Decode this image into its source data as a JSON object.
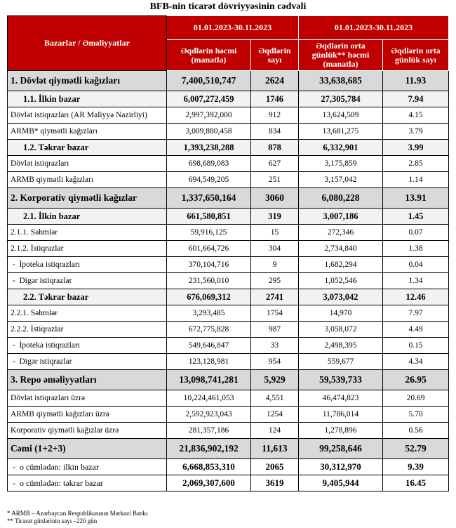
{
  "title": "BFB-nin ticarət dövriyyəsinin cədvəli",
  "header": {
    "col0": "Bazarlar / Əməliyyatlar",
    "period1": "01.01.2023-30.11.2023",
    "period2": "01.01.2023-30.11.2023",
    "h1": "Əqdlərin həcmi (manatla)",
    "h2": "Əqdlərin sayı",
    "h3": "Əqdlərin orta günlük** həcmi (manatla)",
    "h4": "Əqdlərin orta günlük sayı"
  },
  "rows": [
    {
      "type": "main",
      "label": "1. Dövlət qiymətli kağızları",
      "v": [
        "7,400,510,747",
        "2624",
        "33,638,685",
        "11.93"
      ]
    },
    {
      "type": "sub",
      "label": "1.1. İlkin bazar",
      "v": [
        "6,007,272,459",
        "1746",
        "27,305,784",
        "7.94"
      ]
    },
    {
      "type": "norm",
      "label": "Dövlət istiqrazları (AR Maliyyə Nazirliyi)",
      "v": [
        "2,997,392,000",
        "912",
        "13,624,509",
        "4.15"
      ]
    },
    {
      "type": "norm",
      "label": "ARMB* qiymətli kağızları",
      "v": [
        "3,009,880,458",
        "834",
        "13,681,275",
        "3.79"
      ]
    },
    {
      "type": "sub",
      "label": "1.2. Təkrar bazar",
      "v": [
        "1,393,238,288",
        "878",
        "6,332,901",
        "3.99"
      ]
    },
    {
      "type": "norm",
      "label": "Dövlət istiqrazları",
      "v": [
        "698,689,083",
        "627",
        "3,175,859",
        "2.85"
      ]
    },
    {
      "type": "norm",
      "label": "ARMB qiymətli kağızları",
      "v": [
        "694,549,205",
        "251",
        "3,157,042",
        "1.14"
      ]
    },
    {
      "type": "main",
      "label": "2. Korporativ qiymətli kağızlar",
      "v": [
        "1,337,650,164",
        "3060",
        "6,080,228",
        "13.91"
      ]
    },
    {
      "type": "sub",
      "label": "2.1. İlkin bazar",
      "v": [
        "661,580,851",
        "319",
        "3,007,186",
        "1.45"
      ]
    },
    {
      "type": "norm",
      "label": "2.1.1. Səhmlər",
      "v": [
        "59,916,125",
        "15",
        "272,346",
        "0.07"
      ]
    },
    {
      "type": "norm",
      "label": "2.1.2. İstiqrazlar",
      "v": [
        "601,664,726",
        "304",
        "2,734,840",
        "1.38"
      ]
    },
    {
      "type": "norm",
      "label": " -  İpoteka istiqrazları",
      "v": [
        "370,104,716",
        "9",
        "1,682,294",
        "0.04"
      ]
    },
    {
      "type": "norm",
      "label": " -  Digər istiqrazlar",
      "v": [
        "231,560,010",
        "295",
        "1,052,546",
        "1.34"
      ]
    },
    {
      "type": "sub",
      "label": "2.2. Təkrar bazar",
      "v": [
        "676,069,312",
        "2741",
        "3,073,042",
        "12.46"
      ]
    },
    {
      "type": "norm",
      "label": "2.2.1. Səhmlər",
      "v": [
        "3,293,485",
        "1754",
        "14,970",
        "7.97"
      ]
    },
    {
      "type": "norm",
      "label": "2.2.2. İstiqrazlar",
      "v": [
        "672,775,828",
        "987",
        "3,058,072",
        "4.49"
      ]
    },
    {
      "type": "norm",
      "label": " -  İpoteka istiqrazları",
      "v": [
        "549,646,847",
        "33",
        "2,498,395",
        "0.15"
      ]
    },
    {
      "type": "norm",
      "label": " -  Digər istiqrazlar",
      "v": [
        "123,128,981",
        "954",
        "559,677",
        "4.34"
      ]
    },
    {
      "type": "main",
      "label": "3. Repo əməliyyatları",
      "v": [
        "13,098,741,281",
        "5,929",
        "59,539,733",
        "26.95"
      ]
    },
    {
      "type": "norm",
      "label": "Dövlət istiqrazları üzrə",
      "v": [
        "10,224,461,053",
        "4,551",
        "46,474,823",
        "20.69"
      ]
    },
    {
      "type": "norm",
      "label": "ARMB qiymətli kağızları üzrə",
      "v": [
        "2,592,923,043",
        "1254",
        "11,786,014",
        "5.70"
      ]
    },
    {
      "type": "norm",
      "label": "Korporativ qiymətli kağızlar üzrə",
      "v": [
        "281,357,186",
        "124",
        "1,278,896",
        "0.56"
      ]
    },
    {
      "type": "main",
      "label": "Cəmi (1+2+3)",
      "v": [
        "21,836,902,192",
        "11,613",
        "99,258,646",
        "52.79"
      ]
    },
    {
      "type": "tot",
      "label": " -  o cümlədən: ilkin bazar",
      "v": [
        "6,668,853,310",
        "2065",
        "30,312,970",
        "9.39"
      ]
    },
    {
      "type": "tot",
      "label": " -  o cümlədən: təkrar bazar",
      "v": [
        "2,069,307,600",
        "3619",
        "9,405,944",
        "16.45"
      ]
    }
  ],
  "notes": [
    "* ARMB – Azərbaycan Respublikasının Mərkəzi Bankı",
    "** Ticarət günlərinin sayı –220 gün"
  ]
}
